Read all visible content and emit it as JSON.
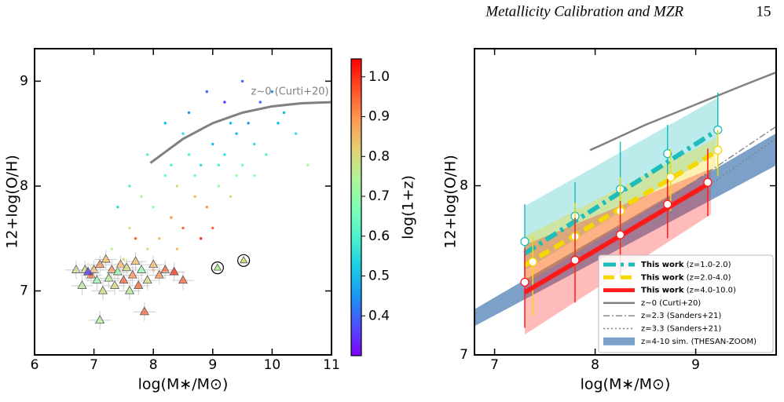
{
  "header": {
    "title": "Metallicity Calibration and MZR",
    "page": "15"
  },
  "chart_data": [
    {
      "type": "scatter",
      "xlabel": "log(M∗/M⊙)",
      "ylabel": "12+log(O/H)",
      "xlim": [
        6,
        11
      ],
      "ylim": [
        6.39,
        9.31
      ],
      "xticks": [
        6,
        7,
        8,
        9,
        10,
        11
      ],
      "yticks": [
        7,
        8,
        9
      ],
      "colorbar": {
        "label": "log(1+z)",
        "clim": [
          0.3,
          1.045
        ],
        "ticks": [
          0.4,
          0.5,
          0.6,
          0.7,
          0.8,
          0.9,
          {
            "value": 1,
            "label": "1.0"
          }
        ],
        "colormap": "rainbow"
      },
      "points": {
        "x": [
          7.6,
          7.8,
          8,
          8.2,
          8.4,
          8.6,
          8.8,
          9,
          9.2,
          9.4,
          9.6,
          9.8,
          10,
          10.2,
          8.1,
          8.3,
          8.5,
          8.7,
          8.9,
          9.1,
          9.3,
          9.5,
          9.7,
          9.9,
          7.3,
          7.5,
          7.7,
          7.9,
          8.2,
          8.6,
          8.9,
          9.2,
          9.5,
          10.4,
          10.6,
          8,
          8.4,
          8.8,
          9,
          7.4,
          7.6,
          7.9,
          8.5,
          9.3,
          9.7,
          10.1,
          8.3,
          8.7,
          9.1,
          9.4
        ],
        "y": [
          7.6,
          7.9,
          7.8,
          8.1,
          8,
          8.3,
          8.2,
          8.4,
          8.3,
          8.5,
          8.6,
          8.8,
          8.9,
          8.7,
          7.5,
          7.7,
          7.6,
          7.9,
          7.8,
          8,
          7.9,
          8.2,
          8.1,
          8.3,
          7.4,
          7.3,
          7.5,
          8.3,
          8.6,
          8.7,
          8.9,
          8.8,
          9,
          8.5,
          8.2,
          7.2,
          7.4,
          7.5,
          7.6,
          7.8,
          8,
          7.4,
          8.5,
          8.6,
          8.4,
          8.6,
          8.2,
          8.1,
          8.2,
          8.1
        ],
        "c": [
          0.8,
          0.75,
          0.7,
          0.65,
          0.8,
          0.6,
          0.55,
          0.5,
          0.55,
          0.5,
          0.45,
          0.4,
          0.45,
          0.5,
          0.85,
          0.9,
          0.95,
          0.85,
          0.9,
          0.7,
          0.8,
          0.65,
          0.7,
          0.6,
          0.75,
          0.8,
          0.95,
          0.6,
          0.5,
          0.45,
          0.4,
          0.35,
          0.4,
          0.55,
          0.7,
          0.9,
          0.85,
          1,
          0.95,
          0.55,
          0.6,
          0.8,
          0.55,
          0.5,
          0.55,
          0.5,
          0.6,
          0.65,
          0.6,
          0.7
        ]
      },
      "triangles": {
        "x": [
          6.7,
          6.8,
          6.95,
          7,
          7.05,
          7.1,
          7.15,
          7.2,
          7.25,
          7.3,
          7.35,
          7.4,
          7.45,
          7.5,
          7.55,
          7.6,
          7.65,
          7.7,
          7.75,
          7.8,
          7.9,
          8,
          8.1,
          8.2,
          8.35,
          8.5,
          7.1,
          7.85,
          6.85,
          6.9
        ],
        "y": [
          7.2,
          7.05,
          7.15,
          7.2,
          7.1,
          7.25,
          7,
          7.3,
          7.12,
          7.2,
          7.05,
          7.18,
          7.25,
          7.1,
          7.22,
          7,
          7.15,
          7.28,
          7.05,
          7.2,
          7.1,
          7.25,
          7.15,
          7.2,
          7.18,
          7.1,
          6.72,
          6.8,
          7.2,
          7.18
        ],
        "c": [
          0.8,
          0.75,
          0.95,
          0.85,
          0.7,
          0.9,
          0.8,
          0.85,
          0.75,
          0.9,
          0.8,
          0.7,
          0.85,
          0.95,
          0.8,
          0.75,
          0.9,
          0.85,
          0.95,
          0.7,
          0.8,
          0.85,
          0.9,
          0.95,
          1,
          0.95,
          0.75,
          0.95,
          0.8,
          0.35
        ]
      },
      "circled": {
        "x": [
          9.08,
          9.52
        ],
        "y": [
          7.22,
          7.29
        ],
        "c": [
          0.75,
          0.8
        ]
      },
      "curti": {
        "label": "z~0 (Curti+20)",
        "x": [
          7.95,
          8.5,
          9,
          9.5,
          10,
          10.5,
          11
        ],
        "y": [
          8.22,
          8.45,
          8.6,
          8.7,
          8.76,
          8.79,
          8.8
        ]
      }
    },
    {
      "type": "line",
      "xlabel": "log(M∗/M⊙)",
      "ylabel": "12+log(O/H)",
      "xlim": [
        6.8,
        9.8
      ],
      "ylim": [
        7,
        8.81
      ],
      "xticks": [
        7,
        8,
        9
      ],
      "yticks": [
        7,
        8
      ],
      "series": [
        {
          "name": "z=4-10 sim. (THESAN-ZOOM)",
          "color": "#4f81b5",
          "band_x": [
            6.8,
            9.8
          ],
          "band_low": [
            7.17,
            8.12
          ],
          "band_high": [
            7.27,
            8.31
          ]
        },
        {
          "name": "This work",
          "label_suffix": "(z=1.0-2.0)",
          "color": "#1fbcbc",
          "style": "dashdot",
          "x": [
            7.3,
            7.8,
            8.25,
            8.72,
            9.22
          ],
          "values": [
            7.67,
            7.82,
            7.98,
            8.19,
            8.33
          ],
          "err_low": [
            0.2,
            0.3,
            0.2,
            0.25,
            0.15
          ],
          "err_high": [
            0.22,
            0.2,
            0.28,
            0.17,
            0.22
          ],
          "fit_x": [
            7.3,
            9.22
          ],
          "fit_y": [
            7.6,
            8.33
          ],
          "band_x": [
            7.3,
            9.22
          ],
          "band_low": [
            7.5,
            8.2
          ],
          "band_high": [
            7.88,
            8.52
          ]
        },
        {
          "name": "This work",
          "label_suffix": "(z=2.0-4.0)",
          "color": "#f5d800",
          "style": "dashed",
          "x": [
            7.38,
            7.8,
            8.25,
            8.75,
            9.22
          ],
          "values": [
            7.55,
            7.7,
            7.85,
            8.05,
            8.21
          ],
          "err_low": [
            0.32,
            0.25,
            0.25,
            0.2,
            0.15
          ],
          "err_high": [
            0.15,
            0.2,
            0.2,
            0.17,
            0.12
          ],
          "fit_x": [
            7.3,
            9.2
          ],
          "fit_y": [
            7.53,
            8.2
          ],
          "band_x": [
            7.3,
            9.2
          ],
          "band_low": [
            7.42,
            8.1
          ],
          "band_high": [
            7.7,
            8.28
          ]
        },
        {
          "name": "This work",
          "label_suffix": "(z=4.0-10.0)",
          "color": "#ff1a1a",
          "style": "solid",
          "x": [
            7.3,
            7.8,
            8.25,
            8.72,
            9.12
          ],
          "values": [
            7.43,
            7.56,
            7.71,
            7.89,
            8.02
          ],
          "err_low": [
            0.27,
            0.25,
            0.25,
            0.2,
            0.2
          ],
          "err_high": [
            0.2,
            0.25,
            0.2,
            0.15,
            0.2
          ],
          "fit_x": [
            7.3,
            9.15
          ],
          "fit_y": [
            7.37,
            8.02
          ],
          "band_x": [
            7.3,
            9.15
          ],
          "band_low": [
            7.12,
            7.83
          ],
          "band_high": [
            7.65,
            8.1
          ]
        },
        {
          "name": "z~0 (Curti+20)",
          "color": "#808080",
          "style": "solid",
          "x": [
            7.95,
            8.5,
            9,
            9.5,
            9.8
          ],
          "values": [
            8.21,
            8.36,
            8.48,
            8.6,
            8.67
          ]
        },
        {
          "name": "z=2.3 (Sanders+21)",
          "color": "#808080",
          "style": "dashdot-thin",
          "x": [
            8.6,
            9.8
          ],
          "values": [
            7.87,
            8.35
          ]
        },
        {
          "name": "z=3.3 (Sanders+21)",
          "color": "#808080",
          "style": "dotted",
          "x": [
            8.6,
            9.8
          ],
          "values": [
            7.78,
            8.28
          ]
        }
      ],
      "legend_order": [
        1,
        2,
        3,
        4,
        5,
        6,
        0
      ]
    }
  ]
}
